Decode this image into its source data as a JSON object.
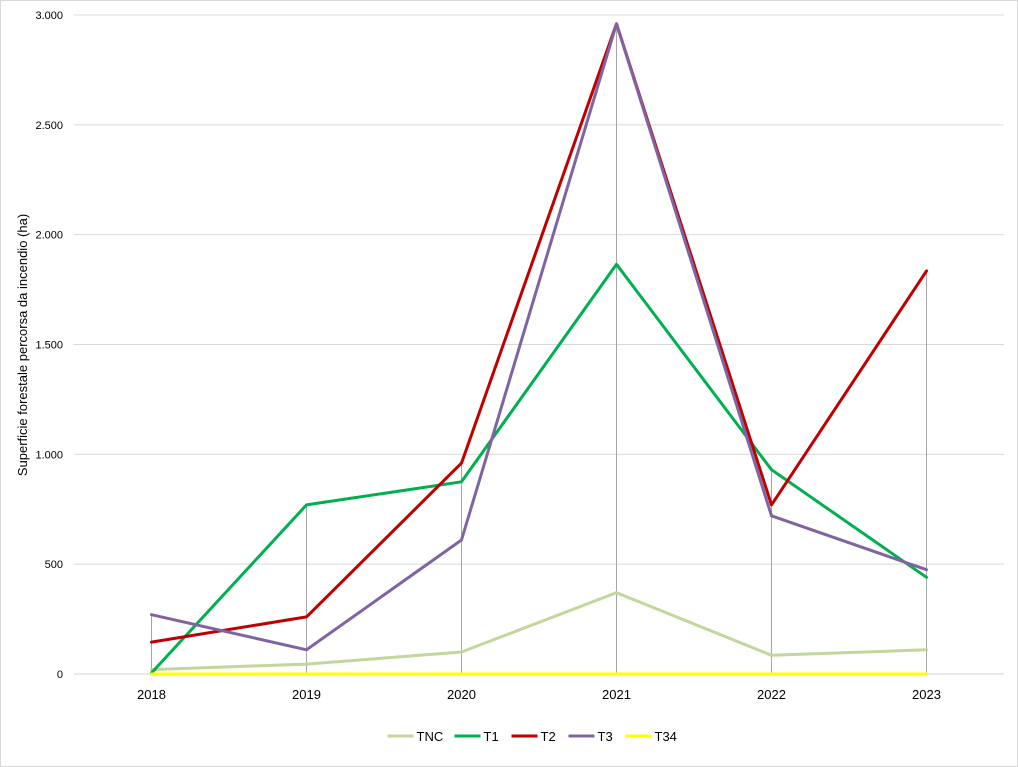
{
  "chart_data": {
    "type": "line",
    "title": "",
    "xlabel": "",
    "ylabel": "Superficie forestale percorsa da incendio (ha)",
    "categories": [
      "2018",
      "2019",
      "2020",
      "2021",
      "2022",
      "2023"
    ],
    "ylim": [
      0,
      3000
    ],
    "yticks": [
      0,
      500,
      1000,
      1500,
      2000,
      2500,
      3000
    ],
    "ytick_labels": [
      "0",
      "500",
      "1.000",
      "1.500",
      "2.000",
      "2.500",
      "3.000"
    ],
    "grid": "horizontal",
    "legend_position": "bottom",
    "series": [
      {
        "name": "TNC",
        "color": "#c3d69b",
        "values": [
          20,
          45,
          100,
          370,
          85,
          110
        ]
      },
      {
        "name": "T1",
        "color": "#00b050",
        "values": [
          5,
          770,
          875,
          1865,
          930,
          440
        ]
      },
      {
        "name": "T2",
        "color": "#c00000",
        "values": [
          145,
          260,
          960,
          2960,
          770,
          1835
        ]
      },
      {
        "name": "T3",
        "color": "#8064a2",
        "values": [
          270,
          110,
          610,
          2960,
          720,
          475
        ]
      },
      {
        "name": "T34",
        "color": "#ffff00",
        "values": [
          0,
          0,
          0,
          0,
          0,
          0
        ]
      }
    ]
  }
}
